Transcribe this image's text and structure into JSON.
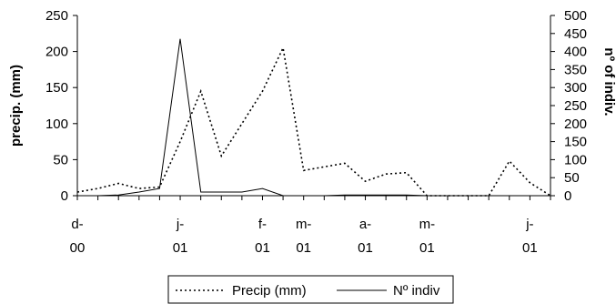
{
  "chart_data": {
    "type": "line",
    "ylabel": "precip. (mm)",
    "y2label": "nº of indiv.",
    "ylim": [
      0,
      250
    ],
    "y2lim": [
      0,
      500
    ],
    "yticks": [
      "0",
      "50",
      "100",
      "150",
      "200",
      "250"
    ],
    "y2ticks": [
      "0",
      "50",
      "100",
      "150",
      "200",
      "250",
      "300",
      "350",
      "400",
      "450",
      "500"
    ],
    "xtick_labels": [
      {
        "index": 0,
        "line1": "d-",
        "line2": "00"
      },
      {
        "index": 5,
        "line1": "j-",
        "line2": "01"
      },
      {
        "index": 9,
        "line1": "f-",
        "line2": "01"
      },
      {
        "index": 11,
        "line1": "m-",
        "line2": "01"
      },
      {
        "index": 14,
        "line1": "a-",
        "line2": "01"
      },
      {
        "index": 17,
        "line1": "m-",
        "line2": "01"
      },
      {
        "index": 22,
        "line1": "j-",
        "line2": "01"
      }
    ],
    "n_points": 24,
    "series": [
      {
        "name": "Precip (mm)",
        "axis": "left",
        "style": "dotted",
        "values": [
          5,
          10,
          17,
          10,
          12,
          75,
          145,
          55,
          100,
          145,
          205,
          35,
          40,
          45,
          20,
          30,
          32,
          0,
          0,
          0,
          0,
          48,
          18,
          0
        ]
      },
      {
        "name": "Nº indiv",
        "axis": "right",
        "style": "solid",
        "values": [
          0,
          0,
          2,
          10,
          20,
          435,
          10,
          10,
          10,
          20,
          0,
          0,
          0,
          2,
          2,
          2,
          2,
          0,
          0,
          0,
          0,
          0,
          0,
          0
        ]
      }
    ],
    "legend_position": "bottom"
  }
}
